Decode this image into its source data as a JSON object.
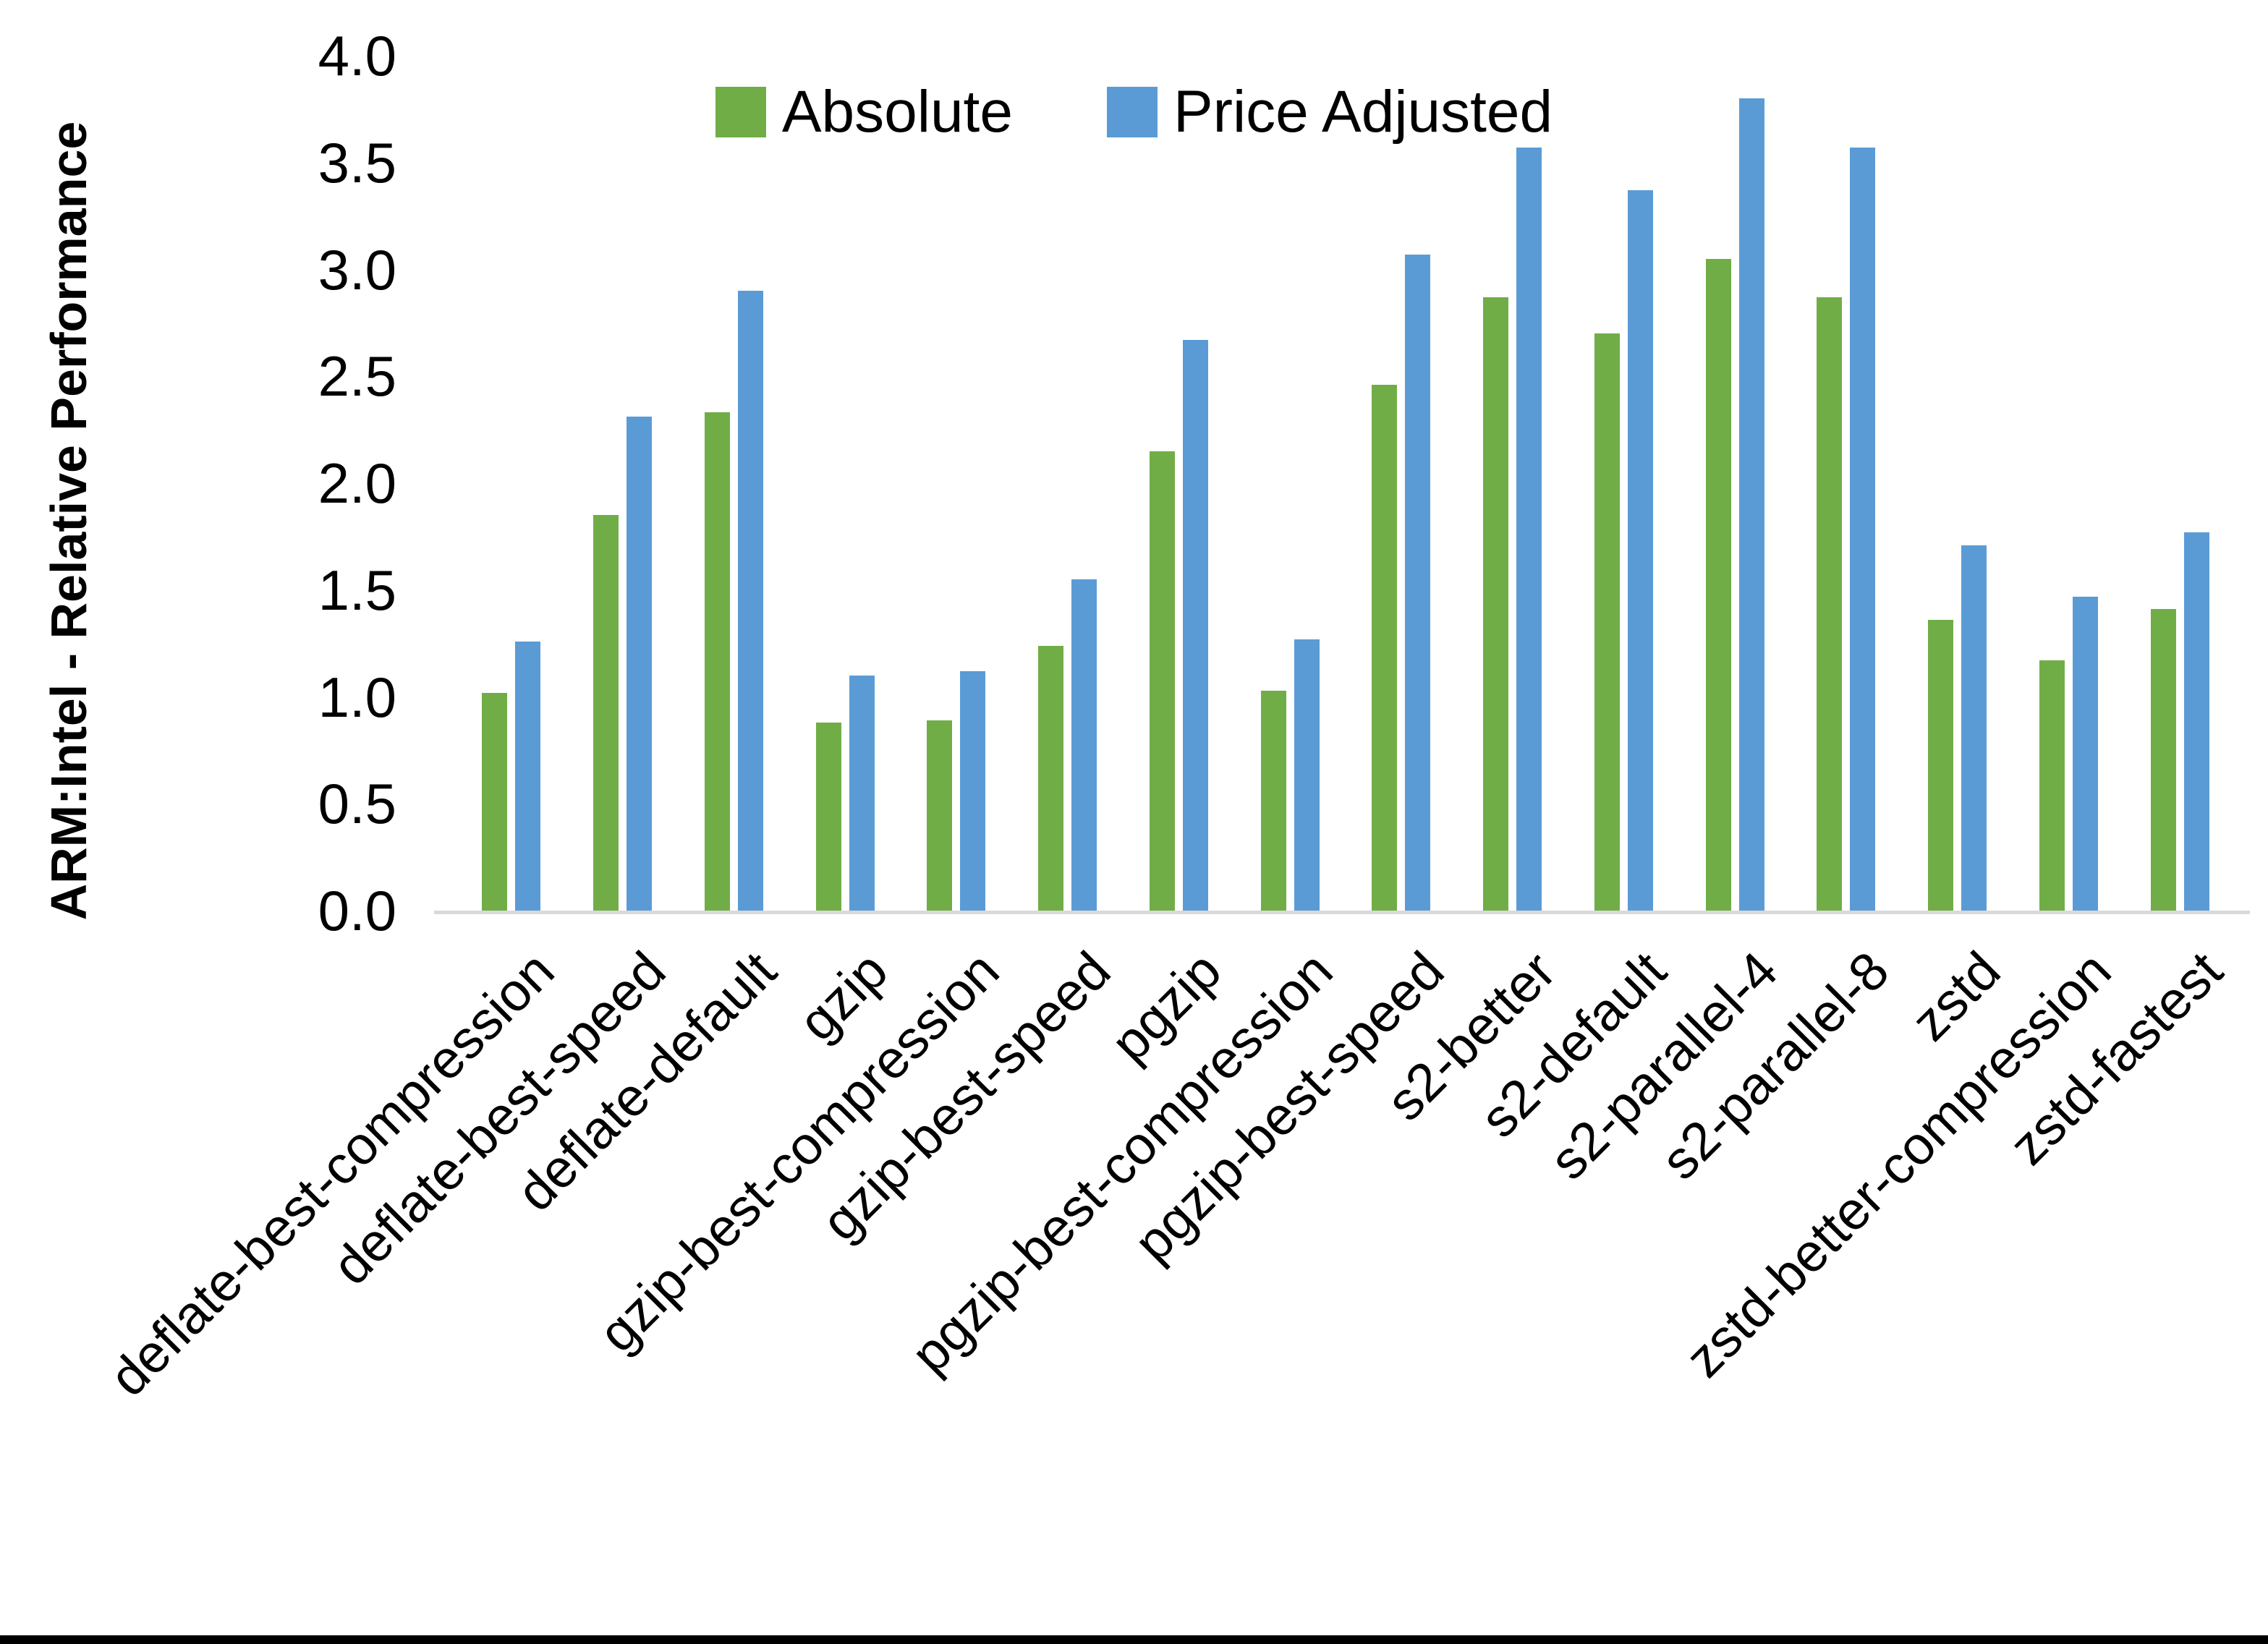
{
  "chart_data": {
    "type": "bar",
    "title": "",
    "xlabel": "",
    "ylabel": "ARM:Intel - Relative Performance",
    "ylim": [
      0.0,
      4.0
    ],
    "ytick_step": 0.5,
    "ytick_labels": [
      "0.0",
      "0.5",
      "1.0",
      "1.5",
      "2.0",
      "2.5",
      "3.0",
      "3.5",
      "4.0"
    ],
    "grid": false,
    "legend_position": "top-center",
    "categories": [
      "deflate-best-compression",
      "deflate-best-speed",
      "deflate-default",
      "gzip",
      "gzip-best-compression",
      "gzip-best-speed",
      "pgzip",
      "pgzip-best-compression",
      "pgzip-best-speed",
      "s2-better",
      "s2-default",
      "s2-parallel-4",
      "s2-parallel-8",
      "zstd",
      "zstd-better-compression",
      "zstd-fastest"
    ],
    "series": [
      {
        "name": "Absolute",
        "color": "#70AD47",
        "values": [
          1.02,
          1.85,
          2.33,
          0.88,
          0.89,
          1.24,
          2.15,
          1.03,
          2.46,
          2.87,
          2.7,
          3.05,
          2.87,
          1.36,
          1.17,
          1.41
        ]
      },
      {
        "name": "Price Adjusted",
        "color": "#5B9BD5",
        "values": [
          1.26,
          2.31,
          2.9,
          1.1,
          1.12,
          1.55,
          2.67,
          1.27,
          3.07,
          3.57,
          3.37,
          3.8,
          3.57,
          1.71,
          1.47,
          1.77
        ]
      }
    ]
  },
  "colors": {
    "background": "#FFFFFF",
    "axis_line": "#D9D9D9",
    "text": "#000000",
    "bottom_border": "#000000"
  }
}
